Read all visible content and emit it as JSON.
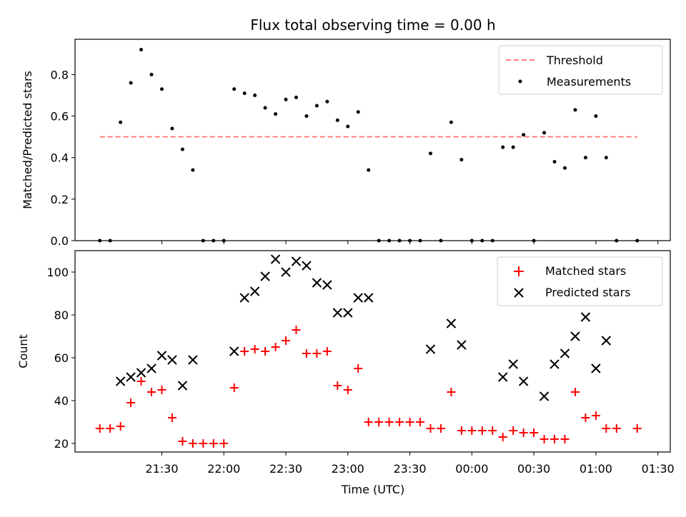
{
  "title": "Flux total observing time = 0.00 h",
  "colors": {
    "measurement": "#000000",
    "threshold": "#ff7f7f",
    "matched": "#ff0000",
    "predicted": "#000000"
  },
  "chart_data": [
    {
      "type": "scatter",
      "panel": "top",
      "ylabel": "Matched/Predicted stars",
      "xlim_minutes": [
        -42,
        246
      ],
      "ylim": [
        0,
        0.97
      ],
      "yticks": [
        0.0,
        0.2,
        0.4,
        0.6,
        0.8
      ],
      "legend_position": "top-right",
      "threshold": {
        "name": "Threshold",
        "value": 0.5,
        "x_range_minutes": [
          -30,
          230
        ],
        "style": "dashed"
      },
      "series": [
        {
          "name": "Measurements",
          "x_minutes": [
            -30,
            -25,
            -20,
            -15,
            -10,
            -5,
            0,
            5,
            10,
            15,
            20,
            25,
            30,
            35,
            40,
            45,
            50,
            55,
            60,
            65,
            70,
            75,
            80,
            85,
            90,
            95,
            100,
            105,
            110,
            115,
            120,
            125,
            130,
            135,
            140,
            145,
            150,
            155,
            160,
            165,
            170,
            175,
            180,
            185,
            190,
            195,
            200,
            205,
            210,
            215,
            220,
            230
          ],
          "values": [
            0,
            0,
            0.57,
            0.76,
            0.92,
            0.8,
            0.73,
            0.54,
            0.44,
            0.34,
            0,
            0,
            0,
            0.73,
            0.71,
            0.7,
            0.64,
            0.61,
            0.68,
            0.69,
            0.6,
            0.65,
            0.67,
            0.58,
            0.55,
            0.62,
            0.34,
            0,
            0,
            0,
            0,
            0,
            0.42,
            0,
            0.57,
            0.39,
            0,
            0,
            0,
            0.45,
            0.45,
            0.51,
            0,
            0.52,
            0.38,
            0.35,
            0.63,
            0.4,
            0.6,
            0.4,
            0,
            0
          ]
        }
      ]
    },
    {
      "type": "scatter",
      "panel": "bottom",
      "xlabel": "Time (UTC)",
      "ylabel": "Count",
      "xlim_minutes": [
        -42,
        246
      ],
      "ylim": [
        16,
        110
      ],
      "yticks": [
        20,
        40,
        60,
        80,
        100
      ],
      "x_tick_minutes": [
        0,
        30,
        60,
        90,
        120,
        150,
        180,
        210,
        240
      ],
      "x_tick_labels": [
        "21:30",
        "22:00",
        "22:30",
        "23:00",
        "23:30",
        "00:00",
        "00:30",
        "01:00",
        "01:30"
      ],
      "legend_position": "top-right",
      "series": [
        {
          "name": "Matched stars",
          "marker": "plus",
          "x_minutes": [
            -30,
            -25,
            -20,
            -15,
            -10,
            -5,
            0,
            5,
            10,
            15,
            20,
            25,
            30,
            35,
            40,
            45,
            50,
            55,
            60,
            65,
            70,
            75,
            80,
            85,
            90,
            95,
            100,
            105,
            110,
            115,
            120,
            125,
            130,
            135,
            140,
            145,
            150,
            155,
            160,
            165,
            170,
            175,
            180,
            185,
            190,
            195,
            200,
            205,
            210,
            215,
            220,
            230
          ],
          "values": [
            27,
            27,
            28,
            39,
            49,
            44,
            45,
            32,
            21,
            20,
            20,
            20,
            20,
            46,
            63,
            64,
            63,
            65,
            68,
            73,
            62,
            62,
            63,
            47,
            45,
            55,
            30,
            30,
            30,
            30,
            30,
            30,
            27,
            27,
            44,
            26,
            26,
            26,
            26,
            23,
            26,
            25,
            25,
            22,
            22,
            22,
            44,
            32,
            33,
            27,
            27,
            27
          ]
        },
        {
          "name": "Predicted stars",
          "marker": "x",
          "x_minutes": [
            -20,
            -15,
            -10,
            -5,
            0,
            5,
            10,
            15,
            35,
            40,
            45,
            50,
            55,
            60,
            65,
            70,
            75,
            80,
            85,
            90,
            95,
            100,
            130,
            140,
            145,
            165,
            170,
            175,
            185,
            190,
            195,
            200,
            205,
            210,
            215
          ],
          "values": [
            49,
            51,
            53,
            55,
            61,
            59,
            47,
            59,
            63,
            88,
            91,
            98,
            106,
            100,
            105,
            103,
            95,
            94,
            81,
            81,
            88,
            88,
            64,
            76,
            66,
            51,
            57,
            49,
            42,
            57,
            62,
            70,
            79,
            55,
            68
          ]
        }
      ]
    }
  ]
}
